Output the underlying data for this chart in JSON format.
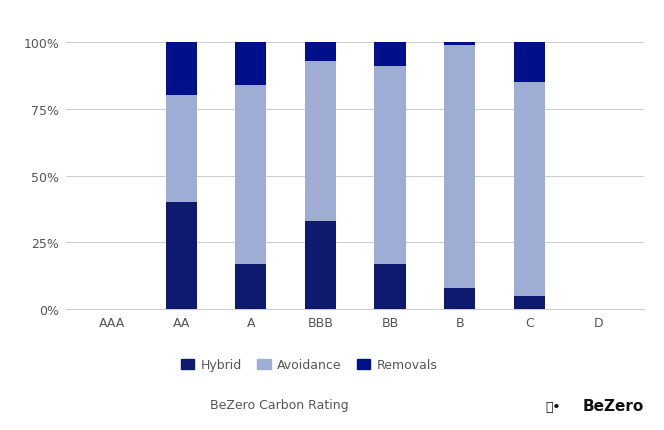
{
  "categories": [
    "AAA",
    "AA",
    "A",
    "BBB",
    "BB",
    "B",
    "C",
    "D"
  ],
  "hybrid": [
    0,
    40,
    17,
    33,
    17,
    8,
    5,
    0
  ],
  "avoidance": [
    0,
    40,
    67,
    60,
    74,
    91,
    80,
    0
  ],
  "removals": [
    0,
    20,
    16,
    7,
    9,
    1,
    15,
    0
  ],
  "hybrid_color": "#0d1a6e",
  "avoidance_color": "#9fadd4",
  "removals_color": "#000f8a",
  "background_color": "#ffffff",
  "xlabel": "BeZero Carbon Rating",
  "yticks": [
    0,
    25,
    50,
    75,
    100
  ],
  "ytick_labels": [
    "0%",
    "25%",
    "50%",
    "75%",
    "100%"
  ],
  "legend_labels": [
    "Hybrid",
    "Avoidance",
    "Removals"
  ],
  "bar_width": 0.45,
  "grid_color": "#cccccc",
  "label_fontsize": 9,
  "legend_fontsize": 9,
  "xlabel_fontsize": 9,
  "bezero_text": "BeZero",
  "bezero_color": "#111111"
}
